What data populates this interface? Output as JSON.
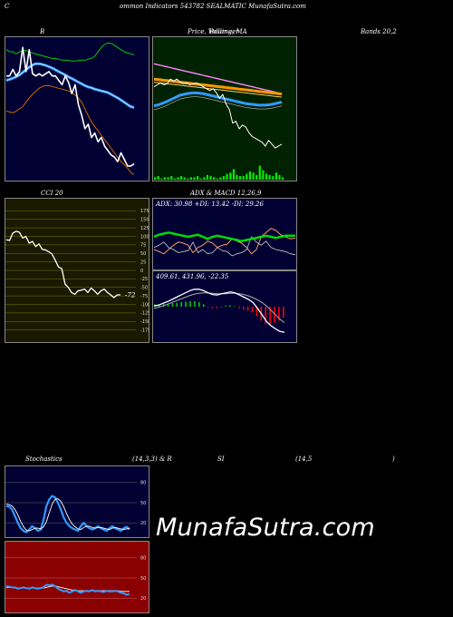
{
  "header": {
    "part1": "C",
    "part2": "ommon  Indicators 543782  SEALMATIC MunafaSutra.com"
  },
  "labels": {
    "bb_left": "B",
    "bb_mid": "Price,  Volume,  MA",
    "bb_mid_over": "Bollinger",
    "bb_right": "Bands 20,2",
    "cci": "CCI 20",
    "adx_title": "ADX  & MACD 12,26,9",
    "adx_values": "ADX: 30.98  +DI: 13.42  -DI: 29.26",
    "macd_values": "409.61,  431.96,  -22.35",
    "cci_value": "-72",
    "stoch_left": "Stochastics",
    "stoch_mid": "(14,3,3) & R",
    "stoch_si": "SI",
    "stoch_r": "(14,5",
    "stoch_end": ")"
  },
  "watermark": "MunafaSutra.com",
  "colors": {
    "navy": "#000033",
    "green_bg": "#002200",
    "olive_bg": "#1a1a00",
    "red_bg": "#8b0000",
    "price": "#ffffff",
    "upper_band": "#00cc00",
    "lower_band": "#cc6600",
    "mid_band": "#3399ff"
  },
  "chart_data": [
    {
      "type": "line",
      "title": "Bollinger Bands 20,2",
      "x": [
        1,
        2,
        3,
        4,
        5,
        6,
        7,
        8,
        9,
        10,
        11,
        12,
        13,
        14,
        15,
        16,
        17,
        18,
        19,
        20,
        21,
        22,
        23,
        24,
        25,
        26,
        27,
        28,
        29,
        30,
        31,
        32,
        33,
        34,
        35,
        36,
        37,
        38,
        39,
        40
      ],
      "series": [
        {
          "name": "price",
          "values": [
            520,
            520,
            535,
            520,
            530,
            585,
            530,
            580,
            525,
            520,
            525,
            520,
            525,
            530,
            520,
            520,
            510,
            500,
            520,
            505,
            480,
            500,
            455,
            430,
            400,
            410,
            380,
            390,
            370,
            380,
            360,
            350,
            340,
            335,
            325,
            345,
            330,
            315,
            315,
            320
          ]
        },
        {
          "name": "upper",
          "values": [
            580,
            575,
            575,
            570,
            575,
            578,
            578,
            575,
            572,
            570,
            568,
            566,
            564,
            562,
            560,
            560,
            558,
            556,
            556,
            555,
            554,
            554,
            555,
            556,
            556,
            558,
            560,
            565,
            575,
            585,
            592,
            595,
            594,
            590,
            585,
            580,
            575,
            572,
            570,
            568
          ]
        },
        {
          "name": "middle",
          "values": [
            510,
            512,
            515,
            518,
            522,
            528,
            534,
            540,
            545,
            548,
            548,
            546,
            544,
            541,
            538,
            534,
            530,
            526,
            522,
            518,
            514,
            510,
            506,
            502,
            498,
            495,
            493,
            490,
            488,
            486,
            484,
            482,
            478,
            474,
            470,
            465,
            460,
            455,
            450,
            448
          ]
        },
        {
          "name": "lower",
          "values": [
            440,
            438,
            436,
            440,
            445,
            450,
            460,
            470,
            478,
            485,
            492,
            496,
            498,
            498,
            496,
            494,
            492,
            490,
            488,
            486,
            482,
            476,
            470,
            460,
            445,
            430,
            415,
            405,
            395,
            385,
            375,
            365,
            355,
            345,
            335,
            325,
            318,
            310,
            300,
            295
          ]
        }
      ],
      "ylim": [
        290,
        600
      ]
    },
    {
      "type": "line",
      "title": "Price, Volume, MA",
      "x": [
        1,
        2,
        3,
        4,
        5,
        6,
        7,
        8,
        9,
        10,
        11,
        12,
        13,
        14,
        15,
        16,
        17,
        18,
        19,
        20,
        21,
        22,
        23,
        24,
        25,
        26,
        27,
        28,
        29,
        30,
        31,
        32,
        33,
        34,
        35,
        36,
        37,
        38,
        39,
        40
      ],
      "series": [
        {
          "name": "price",
          "values": [
            500,
            505,
            510,
            505,
            508,
            520,
            515,
            520,
            512,
            508,
            510,
            505,
            508,
            510,
            505,
            500,
            495,
            490,
            495,
            485,
            470,
            480,
            455,
            440,
            405,
            410,
            390,
            400,
            395,
            380,
            370,
            365,
            360,
            355,
            345,
            360,
            350,
            340,
            345,
            350
          ]
        },
        {
          "name": "ma_pink",
          "values": [
            560,
            558,
            556,
            554,
            552,
            550,
            548,
            546,
            544,
            542,
            540,
            538,
            536,
            534,
            532,
            530,
            528,
            526,
            524,
            522,
            520,
            518,
            516,
            514,
            512,
            510,
            508,
            506,
            504,
            502,
            500,
            498,
            496,
            494,
            492,
            490,
            488,
            486,
            484,
            482
          ]
        },
        {
          "name": "ma_orange",
          "values": [
            520,
            519,
            518,
            517,
            516,
            515,
            514,
            513,
            512,
            511,
            510,
            509,
            508,
            507,
            506,
            505,
            504,
            503,
            502,
            501,
            500,
            499,
            498,
            497,
            496,
            495,
            494,
            493,
            492,
            491,
            490,
            489,
            488,
            487,
            486,
            485,
            484,
            483,
            482,
            481
          ]
        },
        {
          "name": "ma_blue",
          "values": [
            450,
            452,
            455,
            458,
            462,
            466,
            470,
            474,
            478,
            480,
            482,
            483,
            484,
            484,
            483,
            482,
            480,
            478,
            476,
            474,
            472,
            470,
            468,
            466,
            464,
            462,
            460,
            458,
            456,
            455,
            454,
            453,
            452,
            452,
            452,
            453,
            454,
            456,
            458,
            460
          ]
        }
      ],
      "volume": [
        2,
        3,
        1,
        2,
        2,
        3,
        1,
        2,
        3,
        2,
        1,
        2,
        2,
        3,
        1,
        2,
        4,
        3,
        2,
        1,
        2,
        3,
        5,
        6,
        9,
        4,
        3,
        3,
        5,
        7,
        6,
        4,
        12,
        8,
        5,
        4,
        3,
        6,
        4,
        2
      ],
      "ylim": [
        300,
        620
      ]
    },
    {
      "type": "line",
      "title": "CCI 20",
      "ticks": [
        175,
        150,
        125,
        100,
        75,
        50,
        25,
        0,
        -25,
        -50,
        -75,
        -100,
        -125,
        -150,
        -175
      ],
      "x": [
        1,
        2,
        3,
        4,
        5,
        6,
        7,
        8,
        9,
        10,
        11,
        12,
        13,
        14,
        15,
        16,
        17,
        18,
        19,
        20,
        21,
        22,
        23,
        24,
        25,
        26,
        27,
        28,
        29,
        30,
        31,
        32,
        33,
        34,
        35,
        36
      ],
      "series": [
        {
          "name": "cci",
          "values": [
            90,
            88,
            110,
            115,
            112,
            95,
            100,
            80,
            85,
            70,
            78,
            62,
            60,
            55,
            48,
            30,
            10,
            5,
            -40,
            -50,
            -65,
            -70,
            -60,
            -58,
            -55,
            -65,
            -52,
            -60,
            -70,
            -60,
            -55,
            -65,
            -72,
            -80,
            -72,
            -72
          ]
        }
      ],
      "ylim": [
        -200,
        200
      ]
    },
    {
      "type": "line",
      "title": "ADX & MACD 12,26,9",
      "adx": 30.98,
      "plus_di": 13.42,
      "minus_di": 29.26,
      "macd": 409.61,
      "signal": 431.96,
      "histogram": -22.35,
      "x": [
        1,
        2,
        3,
        4,
        5,
        6,
        7,
        8,
        9,
        10,
        11,
        12,
        13,
        14,
        15,
        16,
        17,
        18,
        19,
        20,
        21,
        22,
        23,
        24,
        25,
        26,
        27,
        28,
        29,
        30
      ],
      "series": [
        {
          "name": "adx",
          "values": [
            30,
            32,
            33,
            34,
            33,
            32,
            31,
            30,
            31,
            32,
            30,
            28,
            30,
            31,
            30,
            29,
            28,
            27,
            26,
            27,
            28,
            29,
            30,
            31,
            30,
            29,
            30,
            31,
            31,
            31
          ]
        },
        {
          "name": "plus_di",
          "values": [
            20,
            22,
            25,
            20,
            18,
            15,
            16,
            17,
            25,
            15,
            18,
            14,
            15,
            20,
            17,
            16,
            12,
            14,
            15,
            18,
            30,
            25,
            22,
            26,
            20,
            18,
            17,
            16,
            14,
            13
          ]
        },
        {
          "name": "minus_di",
          "values": [
            18,
            16,
            14,
            18,
            22,
            25,
            24,
            22,
            15,
            20,
            22,
            26,
            24,
            20,
            22,
            23,
            28,
            26,
            24,
            20,
            14,
            18,
            30,
            34,
            38,
            36,
            32,
            30,
            28,
            29
          ]
        }
      ],
      "macd_series": {
        "macd": [
          470,
          472,
          476,
          480,
          485,
          490,
          495,
          500,
          505,
          508,
          508,
          505,
          500,
          496,
          495,
          498,
          500,
          502,
          500,
          495,
          490,
          485,
          478,
          465,
          450,
          435,
          425,
          418,
          412,
          410
        ],
        "signal": [
          465,
          467,
          470,
          474,
          478,
          482,
          486,
          490,
          494,
          497,
          499,
          500,
          500,
          499,
          498,
          498,
          498,
          499,
          499,
          498,
          496,
          493,
          489,
          484,
          478,
          470,
          460,
          450,
          440,
          432
        ]
      },
      "ylim": [
        0,
        50
      ]
    },
    {
      "type": "line",
      "title": "Stochastics (14,3,3)",
      "ticks": [
        80,
        50,
        20
      ],
      "x": [
        1,
        2,
        3,
        4,
        5,
        6,
        7,
        8,
        9,
        10,
        11,
        12,
        13,
        14,
        15,
        16,
        17,
        18,
        19,
        20,
        21,
        22,
        23,
        24,
        25,
        26,
        27,
        28,
        29,
        30,
        31,
        32,
        33,
        34,
        35,
        36,
        37,
        38,
        39,
        40,
        41,
        42,
        43,
        44
      ],
      "series": [
        {
          "name": "k",
          "values": [
            45,
            44,
            40,
            30,
            20,
            12,
            8,
            6,
            10,
            15,
            12,
            8,
            10,
            25,
            45,
            55,
            60,
            58,
            50,
            40,
            28,
            20,
            15,
            12,
            10,
            8,
            15,
            20,
            15,
            12,
            10,
            12,
            15,
            12,
            10,
            8,
            12,
            15,
            12,
            10,
            8,
            12,
            14,
            10
          ]
        },
        {
          "name": "d",
          "values": [
            48,
            47,
            45,
            40,
            32,
            22,
            14,
            9,
            8,
            10,
            12,
            12,
            11,
            14,
            22,
            35,
            48,
            55,
            56,
            52,
            44,
            34,
            25,
            18,
            14,
            11,
            10,
            13,
            15,
            15,
            13,
            12,
            13,
            13,
            12,
            11,
            10,
            12,
            13,
            12,
            11,
            10,
            11,
            12
          ]
        }
      ],
      "ylim": [
        0,
        100
      ]
    },
    {
      "type": "line",
      "title": "RSI (14,5)",
      "ticks": [
        80,
        50,
        20
      ],
      "x": [
        1,
        2,
        3,
        4,
        5,
        6,
        7,
        8,
        9,
        10,
        11,
        12,
        13,
        14,
        15,
        16,
        17,
        18,
        19,
        20,
        21,
        22,
        23,
        24,
        25,
        26,
        27,
        28,
        29,
        30,
        31,
        32,
        33,
        34,
        35,
        36,
        37,
        38,
        39,
        40,
        41,
        42,
        43,
        44
      ],
      "series": [
        {
          "name": "rsi",
          "values": [
            38,
            37,
            36,
            36,
            34,
            35,
            36,
            35,
            34,
            36,
            35,
            34,
            35,
            36,
            40,
            39,
            40,
            38,
            34,
            32,
            30,
            31,
            28,
            30,
            32,
            30,
            28,
            30,
            31,
            30,
            32,
            30,
            31,
            30,
            29,
            31,
            30,
            30,
            31,
            30,
            28,
            27,
            25,
            26
          ]
        },
        {
          "name": "rsi_ma",
          "values": [
            36,
            36,
            36,
            35,
            35,
            35,
            35,
            35,
            35,
            35,
            35,
            35,
            35,
            35,
            36,
            37,
            38,
            38,
            37,
            36,
            35,
            34,
            33,
            32,
            32,
            31,
            31,
            31,
            31,
            31,
            31,
            31,
            31,
            31,
            31,
            31,
            31,
            31,
            31,
            31,
            30,
            30,
            30,
            30
          ]
        }
      ],
      "ylim": [
        0,
        100
      ]
    }
  ]
}
